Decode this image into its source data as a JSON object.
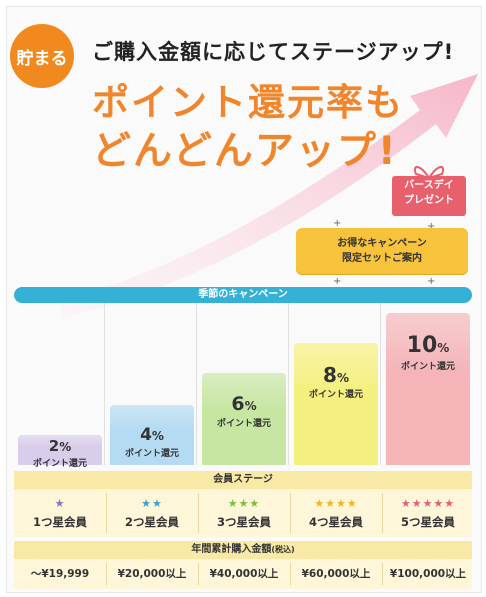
{
  "badge": "貯まる",
  "headline": "ご購入金額に応じてステージアップ!",
  "catch_line1": "ポイント還元率も",
  "catch_line2": "どんどんアップ!",
  "birthday": {
    "line1": "バースデイ",
    "line2": "プレゼント"
  },
  "campaign": {
    "line1": "お得なキャンペーン",
    "line2": "限定セットご案内"
  },
  "season_campaign": "季節のキャンペーン",
  "stage_header": "会員ステージ",
  "total_header": "年間累計購入金額",
  "total_header_note": "(税込)",
  "tiers": [
    {
      "rate": "2",
      "unit": "%",
      "rate_label": "ポイント還元",
      "stars": "★",
      "star_color": "#8a6fc4",
      "member": "1つ星会員",
      "amount": "～¥19,999",
      "bar_color": "#d8cdea"
    },
    {
      "rate": "4",
      "unit": "%",
      "rate_label": "ポイント還元",
      "stars": "★★",
      "star_color": "#3b9fd8",
      "member": "2つ星会員",
      "amount": "¥20,000以上",
      "bar_color": "#b5dbf3"
    },
    {
      "rate": "6",
      "unit": "%",
      "rate_label": "ポイント還元",
      "stars": "★★★",
      "star_color": "#7cbf3a",
      "member": "3つ星会員",
      "amount": "¥40,000以上",
      "bar_color": "#c6e6a2"
    },
    {
      "rate": "8",
      "unit": "%",
      "rate_label": "ポイント還元",
      "stars": "★★★★",
      "star_color": "#f0b51e",
      "member": "4つ星会員",
      "amount": "¥60,000以上",
      "bar_color": "#f4ef7e"
    },
    {
      "rate": "10",
      "unit": "%",
      "rate_label": "ポイント還元",
      "stars": "★★★★★",
      "star_color": "#e2607a",
      "member": "5つ星会員",
      "amount": "¥100,000以上",
      "bar_color": "#f4b4b8"
    }
  ],
  "colors": {
    "accent": "#f0852b",
    "season_bar": "#35b1d6",
    "campaign": "#f7c23c",
    "gift": "#e8606c"
  }
}
